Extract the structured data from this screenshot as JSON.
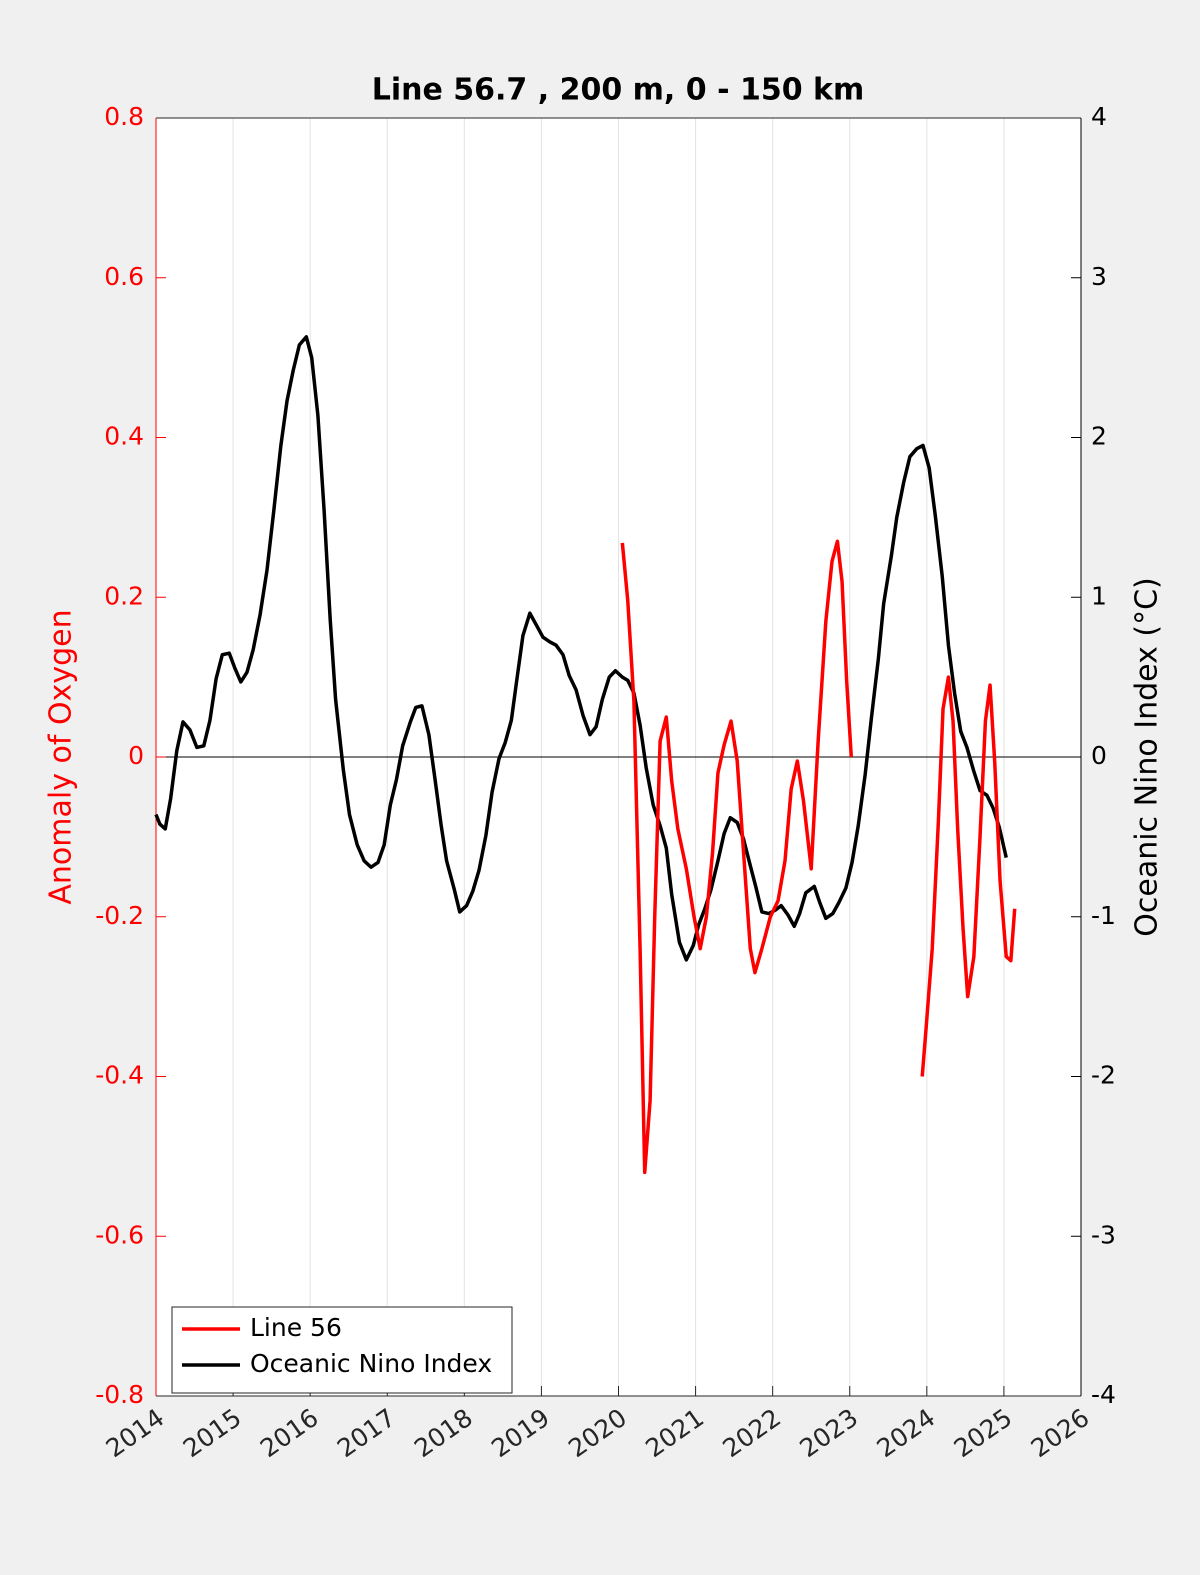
{
  "chart_data": {
    "type": "line",
    "title": "Line 56.7 , 200 m, 0 - 150 km",
    "ylabel": "Anomaly of Oxygen",
    "y2label": "Oceanic Nino Index (°C)",
    "xlim": [
      2014,
      2026
    ],
    "xticks": [
      2014,
      2015,
      2016,
      2017,
      2018,
      2019,
      2020,
      2021,
      2022,
      2023,
      2024,
      2025,
      2026
    ],
    "ylim": [
      -0.8,
      0.8
    ],
    "yticks": [
      -0.8,
      -0.6,
      -0.4,
      -0.2,
      0,
      0.2,
      0.4,
      0.6,
      0.8
    ],
    "y2lim": [
      -4,
      4
    ],
    "y2ticks": [
      -4,
      -3,
      -2,
      -1,
      0,
      1,
      2,
      3,
      4
    ],
    "ycolor": "#ff0000",
    "y2color": "#000000",
    "grid": "x",
    "hline": 0,
    "legend": "lower left",
    "series": [
      {
        "name": "Line 56",
        "color": "#ff0000",
        "x": [
          2020.05,
          2020.12,
          2020.2,
          2020.28,
          2020.34,
          2020.41,
          2020.47,
          2020.54,
          2020.62,
          2020.69,
          2020.77,
          2020.88,
          2020.98,
          2021.06,
          2021.14,
          2021.22,
          2021.29,
          2021.37,
          2021.46,
          2021.54,
          2021.63,
          2021.71,
          2021.77,
          2021.86,
          2021.97,
          2022.07,
          2022.16,
          2022.24,
          2022.32,
          2022.4,
          2022.5,
          2022.59,
          2022.69,
          2022.77,
          2022.84,
          2022.9,
          2022.96,
          2023.02,
          2023.5,
          2023.94,
          2023.99,
          2024.07,
          2024.15,
          2024.21,
          2024.28,
          2024.34,
          2024.4,
          2024.47,
          2024.53,
          2024.61,
          2024.69,
          2024.76,
          2024.82,
          2024.88,
          2024.95,
          2025.03,
          2025.09,
          2025.14
        ],
        "values": [
          0.268,
          0.196,
          0.07,
          -0.24,
          -0.52,
          -0.43,
          -0.2,
          0.02,
          0.05,
          -0.03,
          -0.09,
          -0.14,
          -0.2,
          -0.24,
          -0.2,
          -0.12,
          -0.02,
          0.015,
          0.045,
          -0.005,
          -0.13,
          -0.24,
          -0.27,
          -0.24,
          -0.2,
          -0.18,
          -0.13,
          -0.04,
          -0.005,
          -0.055,
          -0.14,
          0.02,
          0.17,
          0.245,
          0.27,
          0.22,
          0.095,
          0,
          null,
          -0.4,
          -0.34,
          -0.24,
          -0.08,
          0.06,
          0.1,
          0.045,
          -0.09,
          -0.215,
          -0.3,
          -0.25,
          -0.1,
          0.045,
          0.09,
          -0.005,
          -0.155,
          -0.25,
          -0.255,
          -0.19
        ]
      },
      {
        "name": "Oceanic Nino Index",
        "color": "#000000",
        "axis": "y2",
        "x": [
          2014.0,
          2014.05,
          2014.12,
          2014.19,
          2014.27,
          2014.35,
          2014.44,
          2014.53,
          2014.62,
          2014.7,
          2014.78,
          2014.86,
          2014.95,
          2015.02,
          2015.1,
          2015.18,
          2015.26,
          2015.35,
          2015.44,
          2015.53,
          2015.62,
          2015.7,
          2015.78,
          2015.86,
          2015.95,
          2016.02,
          2016.1,
          2016.18,
          2016.26,
          2016.33,
          2016.43,
          2016.51,
          2016.61,
          2016.7,
          2016.79,
          2016.88,
          2016.96,
          2017.04,
          2017.12,
          2017.2,
          2017.3,
          2017.37,
          2017.45,
          2017.54,
          2017.62,
          2017.7,
          2017.77,
          2017.87,
          2017.94,
          2018.03,
          2018.11,
          2018.19,
          2018.28,
          2018.36,
          2018.45,
          2018.53,
          2018.61,
          2018.68,
          2018.76,
          2018.85,
          2018.93,
          2019.02,
          2019.11,
          2019.19,
          2019.28,
          2019.36,
          2019.45,
          2019.54,
          2019.63,
          2019.71,
          2019.79,
          2019.88,
          2019.96,
          2020.05,
          2020.12,
          2020.2,
          2020.28,
          2020.36,
          2020.45,
          2020.54,
          2020.62,
          2020.69,
          2020.79,
          2020.88,
          2020.97,
          2021.04,
          2021.12,
          2021.2,
          2021.29,
          2021.37,
          2021.45,
          2021.54,
          2021.62,
          2021.71,
          2021.78,
          2021.86,
          2021.95,
          2022.03,
          2022.11,
          2022.2,
          2022.28,
          2022.35,
          2022.43,
          2022.54,
          2022.61,
          2022.69,
          2022.78,
          2022.86,
          2022.95,
          2023.03,
          2023.11,
          2023.2,
          2023.28,
          2023.37,
          2023.44,
          2023.54,
          2023.61,
          2023.7,
          2023.78,
          2023.87,
          2023.95,
          2024.03,
          2024.11,
          2024.2,
          2024.28,
          2024.36,
          2024.44,
          2024.52,
          2024.61,
          2024.69,
          2024.78,
          2024.86,
          2024.94,
          2025.03
        ],
        "values": [
          -0.36,
          -0.42,
          -0.45,
          -0.26,
          0.04,
          0.22,
          0.17,
          0.06,
          0.07,
          0.23,
          0.49,
          0.64,
          0.65,
          0.56,
          0.47,
          0.53,
          0.67,
          0.89,
          1.17,
          1.55,
          1.95,
          2.23,
          2.42,
          2.58,
          2.63,
          2.5,
          2.14,
          1.55,
          0.86,
          0.36,
          -0.08,
          -0.36,
          -0.55,
          -0.65,
          -0.69,
          -0.66,
          -0.55,
          -0.3,
          -0.14,
          0.07,
          0.22,
          0.31,
          0.32,
          0.14,
          -0.14,
          -0.43,
          -0.65,
          -0.83,
          -0.97,
          -0.93,
          -0.84,
          -0.71,
          -0.49,
          -0.22,
          -0.01,
          0.09,
          0.23,
          0.48,
          0.76,
          0.9,
          0.83,
          0.75,
          0.72,
          0.7,
          0.64,
          0.51,
          0.42,
          0.26,
          0.14,
          0.19,
          0.36,
          0.5,
          0.54,
          0.5,
          0.48,
          0.4,
          0.2,
          -0.07,
          -0.3,
          -0.43,
          -0.57,
          -0.86,
          -1.16,
          -1.27,
          -1.18,
          -1.05,
          -0.95,
          -0.83,
          -0.65,
          -0.48,
          -0.38,
          -0.41,
          -0.51,
          -0.68,
          -0.81,
          -0.97,
          -0.98,
          -0.96,
          -0.93,
          -0.99,
          -1.06,
          -0.98,
          -0.85,
          -0.81,
          -0.91,
          -1.01,
          -0.98,
          -0.91,
          -0.82,
          -0.66,
          -0.43,
          -0.11,
          0.24,
          0.61,
          0.96,
          1.26,
          1.5,
          1.72,
          1.88,
          1.93,
          1.95,
          1.81,
          1.51,
          1.13,
          0.7,
          0.4,
          0.16,
          0.06,
          -0.09,
          -0.21,
          -0.24,
          -0.32,
          -0.44,
          -0.63
        ]
      }
    ]
  }
}
